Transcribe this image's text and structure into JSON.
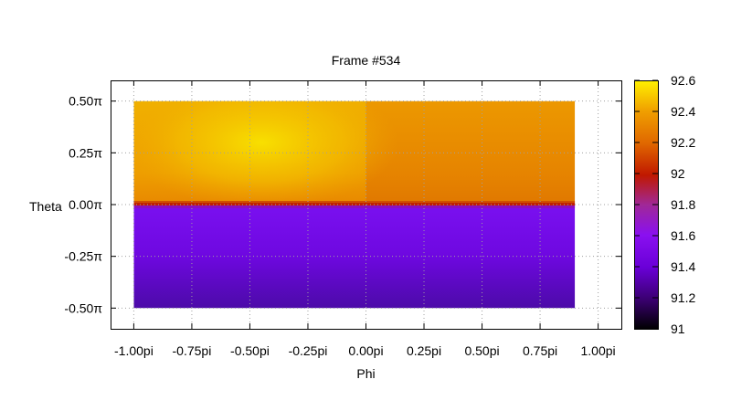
{
  "chart_data": {
    "type": "heatmap",
    "title": "Frame #534",
    "xlabel": "Phi",
    "ylabel": "Theta",
    "xlim": [
      -1.1,
      1.1
    ],
    "ylim": [
      -0.6,
      0.6
    ],
    "x_ticks": [
      {
        "value": -1.0,
        "label": "-1.00pi"
      },
      {
        "value": -0.75,
        "label": "-0.75pi"
      },
      {
        "value": -0.5,
        "label": "-0.50pi"
      },
      {
        "value": -0.25,
        "label": "-0.25pi"
      },
      {
        "value": 0.0,
        "label": "0.00pi"
      },
      {
        "value": 0.25,
        "label": "0.25pi"
      },
      {
        "value": 0.5,
        "label": "0.50pi"
      },
      {
        "value": 0.75,
        "label": "0.75pi"
      },
      {
        "value": 1.0,
        "label": "1.00pi"
      }
    ],
    "y_ticks": [
      {
        "value": 0.5,
        "label": "0.50π"
      },
      {
        "value": 0.25,
        "label": "0.25π"
      },
      {
        "value": 0.0,
        "label": "0.00π"
      },
      {
        "value": -0.25,
        "label": "-0.25π"
      },
      {
        "value": -0.5,
        "label": "-0.50π"
      }
    ],
    "grid": true,
    "data_extent": {
      "x": [
        -1.0,
        0.9
      ],
      "y": [
        -0.5,
        0.5
      ]
    },
    "regions": [
      {
        "y_range": [
          0.0,
          0.5
        ],
        "x_range": [
          -1.0,
          -0.05
        ],
        "value_range": [
          92.3,
          92.55
        ],
        "peak": {
          "x": -0.45,
          "y": 0.3,
          "value": 92.55
        }
      },
      {
        "y_range": [
          0.0,
          0.5
        ],
        "x_range": [
          0.0,
          0.9
        ],
        "value_range": [
          92.2,
          92.3
        ]
      },
      {
        "y_range": [
          -0.02,
          0.02
        ],
        "x_range": [
          -1.0,
          0.9
        ],
        "value": 92.0
      },
      {
        "y_range": [
          -0.5,
          0.0
        ],
        "x_range": [
          -1.0,
          0.9
        ],
        "value_range": [
          91.2,
          91.4
        ]
      }
    ],
    "colorbar": {
      "min": 91,
      "max": 92.6,
      "palette": "black-purple-red-orange-yellow",
      "ticks": [
        {
          "value": 91,
          "label": "91"
        },
        {
          "value": 91.2,
          "label": "91.2"
        },
        {
          "value": 91.4,
          "label": "91.4"
        },
        {
          "value": 91.6,
          "label": "91.6"
        },
        {
          "value": 91.8,
          "label": "91.8"
        },
        {
          "value": 92,
          "label": "92"
        },
        {
          "value": 92.2,
          "label": "92.2"
        },
        {
          "value": 92.4,
          "label": "92.4"
        },
        {
          "value": 92.6,
          "label": "92.6"
        }
      ]
    },
    "colors": {
      "grid": "#a0a0a0",
      "frame": "#000000"
    }
  }
}
